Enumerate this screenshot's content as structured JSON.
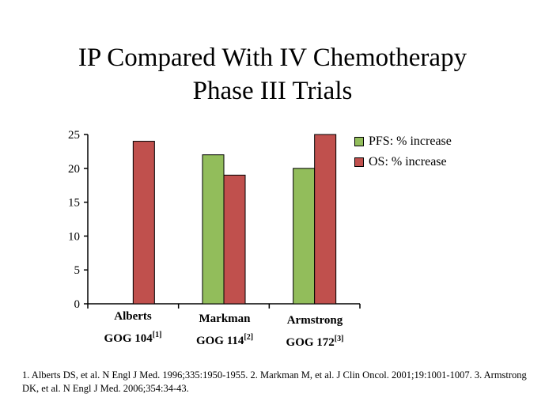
{
  "title_line1": "IP Compared With IV Chemotherapy",
  "title_line2": "Phase III Trials",
  "colors": {
    "pfs": "#92bd5b",
    "os": "#c0504d",
    "axis": "#000000"
  },
  "chart_data": {
    "type": "bar",
    "categories": [
      "Alberts GOG 104[1]",
      "Markman GOG 114[2]",
      "Armstrong GOG 172[3]"
    ],
    "category_labels": [
      {
        "name": "Alberts",
        "study": "GOG 104",
        "ref": "[1]"
      },
      {
        "name": "Markman",
        "study": "GOG 114",
        "ref": "[2]"
      },
      {
        "name": "Armstrong",
        "study": "GOG 172",
        "ref": "[3]"
      }
    ],
    "series": [
      {
        "name": "PFS: % increase",
        "color": "#92bd5b",
        "values": [
          null,
          22,
          20
        ]
      },
      {
        "name": "OS: % increase",
        "color": "#c0504d",
        "values": [
          24,
          19,
          25
        ]
      }
    ],
    "ylim": [
      0,
      25
    ],
    "yticks": [
      "0",
      "5",
      "10",
      "15",
      "20",
      "25"
    ],
    "grid": false,
    "legend_position": "right"
  },
  "footnote": "1. Alberts DS, et al. N Engl J Med. 1996;335:1950-1955. 2. Markman M, et al. J Clin Oncol. 2001;19:1001-1007. 3. Armstrong DK, et al. N Engl J Med. 2006;354:34-43."
}
